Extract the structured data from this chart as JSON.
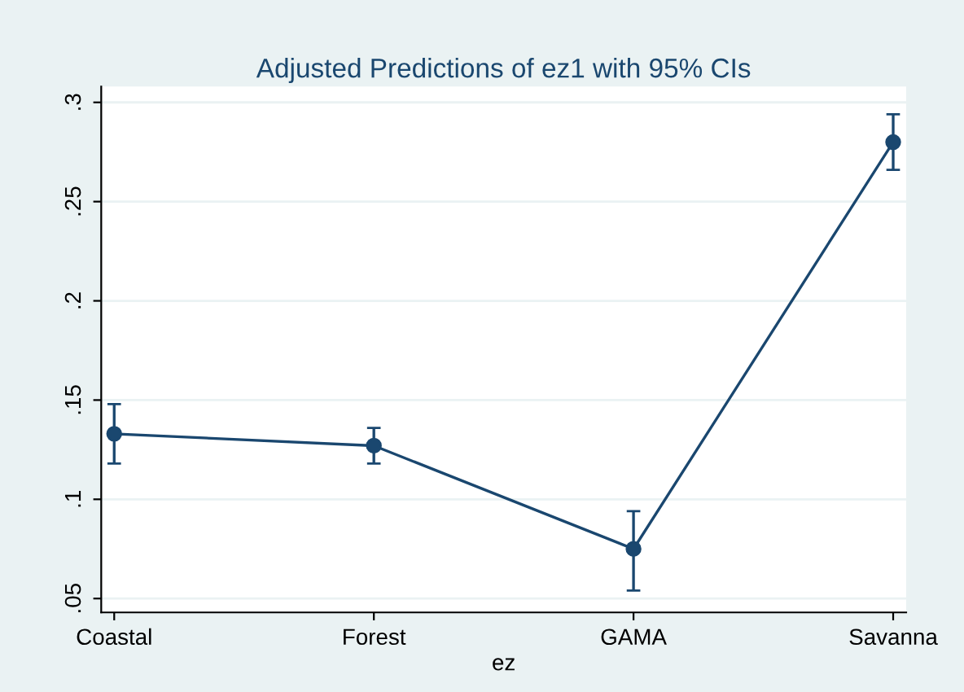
{
  "chart_data": {
    "type": "line",
    "title": "Adjusted Predictions of ez1 with 95% CIs",
    "xlabel": "ez",
    "categories": [
      "Coastal",
      "Forest",
      "GAMA",
      "Savanna"
    ],
    "series": [
      {
        "color": "#1a476f",
        "values": [
          0.133,
          0.127,
          0.075,
          0.28
        ],
        "errors": [
          [
            0.118,
            0.148
          ],
          [
            0.118,
            0.136
          ],
          [
            0.054,
            0.094
          ],
          [
            0.266,
            0.294
          ]
        ]
      }
    ],
    "ylim": [
      0.043,
      0.308
    ],
    "yticks": [
      {
        "value": 0.05,
        "label": ".05"
      },
      {
        "value": 0.1,
        "label": ".1"
      },
      {
        "value": 0.15,
        "label": ".15"
      },
      {
        "value": 0.2,
        "label": ".2"
      },
      {
        "value": 0.25,
        "label": ".25"
      },
      {
        "value": 0.3,
        "label": ".3"
      }
    ],
    "grid": "y",
    "marker": "circle",
    "line_style": "solid",
    "legend": false
  }
}
